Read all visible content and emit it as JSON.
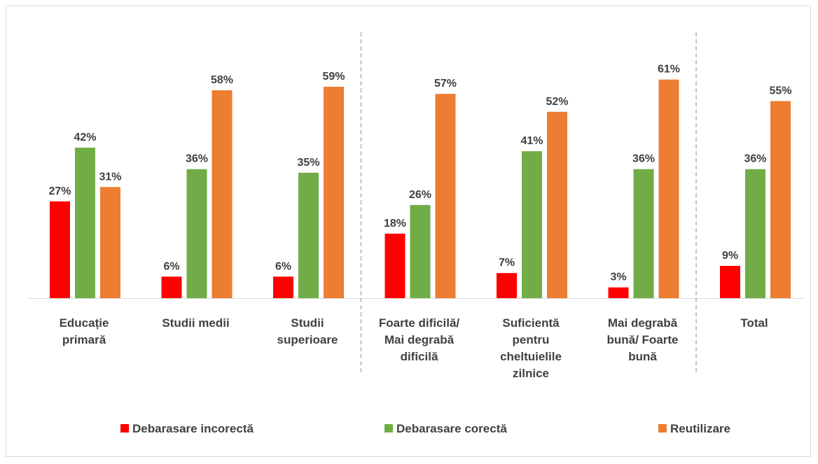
{
  "chart_data": {
    "type": "bar",
    "title": "",
    "xlabel": "",
    "ylabel": "",
    "ylim": [
      0,
      65
    ],
    "grid": false,
    "legend_position": "bottom",
    "categories": [
      [
        "Educație",
        "primară"
      ],
      [
        "Studii medii"
      ],
      [
        "Studii",
        "superioare"
      ],
      [
        "Foarte dificilă/",
        "Mai degrabă",
        "dificilă"
      ],
      [
        "Suficientă",
        "pentru",
        "cheltuielile",
        "zilnice"
      ],
      [
        "Mai degrabă",
        "bună/ Foarte",
        "bună"
      ],
      [
        "Total"
      ]
    ],
    "group_separators_after": [
      2,
      5
    ],
    "series": [
      {
        "name": "Debarasare incorectă",
        "color": "#ff0000",
        "values": [
          27,
          6,
          6,
          18,
          7,
          3,
          9
        ],
        "labels": [
          "27%",
          "6%",
          "6%",
          "18%",
          "7%",
          "3%",
          "9%"
        ]
      },
      {
        "name": "Debarasare corectă",
        "color": "#70ad47",
        "values": [
          42,
          36,
          35,
          26,
          41,
          36,
          36
        ],
        "labels": [
          "42%",
          "36%",
          "35%",
          "26%",
          "41%",
          "36%",
          "36%"
        ]
      },
      {
        "name": "Reutilizare",
        "color": "#ed7d31",
        "values": [
          31,
          58,
          59,
          57,
          52,
          61,
          55
        ],
        "labels": [
          "31%",
          "58%",
          "59%",
          "57%",
          "52%",
          "61%",
          "55%"
        ]
      }
    ]
  }
}
